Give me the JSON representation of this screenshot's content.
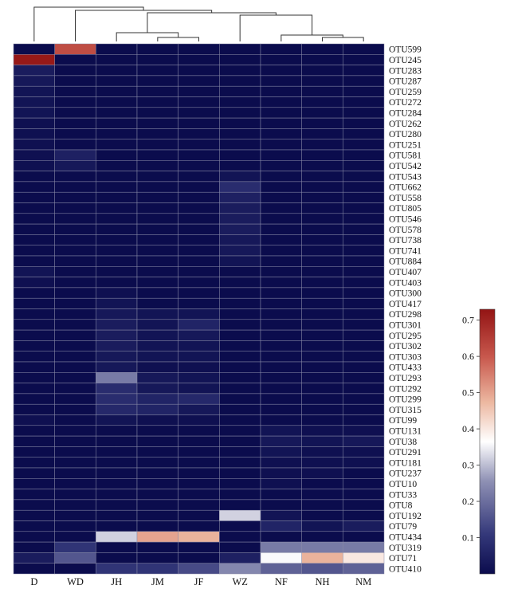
{
  "chart_data": {
    "type": "heatmap",
    "columns": [
      "D",
      "WD",
      "JH",
      "JM",
      "JF",
      "WZ",
      "NF",
      "NH",
      "NM"
    ],
    "rows": [
      "OTU599",
      "OTU245",
      "OTU283",
      "OTU287",
      "OTU259",
      "OTU272",
      "OTU284",
      "OTU262",
      "OTU280",
      "OTU251",
      "OTU581",
      "OTU542",
      "OTU543",
      "OTU662",
      "OTU558",
      "OTU805",
      "OTU546",
      "OTU578",
      "OTU738",
      "OTU741",
      "OTU884",
      "OTU407",
      "OTU403",
      "OTU300",
      "OTU417",
      "OTU298",
      "OTU301",
      "OTU295",
      "OTU302",
      "OTU303",
      "OTU433",
      "OTU293",
      "OTU292",
      "OTU299",
      "OTU315",
      "OTU99",
      "OTU131",
      "OTU38",
      "OTU291",
      "OTU181",
      "OTU237",
      "OTU10",
      "OTU33",
      "OTU8",
      "OTU192",
      "OTU79",
      "OTU434",
      "OTU319",
      "OTU71",
      "OTU410"
    ],
    "values": [
      [
        0.0,
        0.62,
        0.0,
        0.0,
        0.0,
        0.0,
        0.0,
        0.0,
        0.0
      ],
      [
        0.72,
        0.0,
        0.0,
        0.0,
        0.0,
        0.0,
        0.0,
        0.0,
        0.0
      ],
      [
        0.04,
        0.0,
        0.0,
        0.0,
        0.0,
        0.0,
        0.0,
        0.0,
        0.0
      ],
      [
        0.03,
        0.0,
        0.0,
        0.0,
        0.0,
        0.0,
        0.0,
        0.0,
        0.0
      ],
      [
        0.02,
        0.0,
        0.0,
        0.0,
        0.0,
        0.0,
        0.0,
        0.0,
        0.0
      ],
      [
        0.02,
        0.0,
        0.0,
        0.0,
        0.0,
        0.0,
        0.0,
        0.0,
        0.0
      ],
      [
        0.02,
        0.0,
        0.0,
        0.0,
        0.0,
        0.0,
        0.0,
        0.0,
        0.0
      ],
      [
        0.01,
        0.0,
        0.0,
        0.0,
        0.0,
        0.0,
        0.0,
        0.0,
        0.0
      ],
      [
        0.01,
        0.0,
        0.0,
        0.0,
        0.0,
        0.0,
        0.0,
        0.0,
        0.0
      ],
      [
        0.01,
        0.0,
        0.0,
        0.0,
        0.0,
        0.0,
        0.0,
        0.0,
        0.0
      ],
      [
        0.01,
        0.05,
        0.0,
        0.0,
        0.0,
        0.0,
        0.0,
        0.0,
        0.0
      ],
      [
        0.01,
        0.03,
        0.0,
        0.0,
        0.0,
        0.0,
        0.0,
        0.0,
        0.0
      ],
      [
        0.0,
        0.0,
        0.0,
        0.0,
        0.0,
        0.02,
        0.0,
        0.0,
        0.0
      ],
      [
        0.0,
        0.0,
        0.0,
        0.0,
        0.0,
        0.08,
        0.0,
        0.0,
        0.0
      ],
      [
        0.0,
        0.0,
        0.0,
        0.0,
        0.0,
        0.05,
        0.0,
        0.0,
        0.0
      ],
      [
        0.0,
        0.0,
        0.0,
        0.0,
        0.0,
        0.04,
        0.0,
        0.0,
        0.0
      ],
      [
        0.0,
        0.0,
        0.0,
        0.0,
        0.0,
        0.04,
        0.0,
        0.0,
        0.0
      ],
      [
        0.0,
        0.0,
        0.0,
        0.0,
        0.0,
        0.04,
        0.0,
        0.0,
        0.0
      ],
      [
        0.0,
        0.0,
        0.0,
        0.0,
        0.0,
        0.03,
        0.0,
        0.0,
        0.0
      ],
      [
        0.0,
        0.0,
        0.0,
        0.0,
        0.0,
        0.03,
        0.0,
        0.0,
        0.0
      ],
      [
        0.0,
        0.0,
        0.0,
        0.0,
        0.0,
        0.02,
        0.0,
        0.0,
        0.0
      ],
      [
        0.02,
        0.0,
        0.0,
        0.0,
        0.0,
        0.0,
        0.0,
        0.0,
        0.0
      ],
      [
        0.01,
        0.0,
        0.0,
        0.0,
        0.0,
        0.0,
        0.0,
        0.0,
        0.0
      ],
      [
        0.0,
        0.0,
        0.01,
        0.0,
        0.0,
        0.0,
        0.0,
        0.0,
        0.0
      ],
      [
        0.0,
        0.0,
        0.02,
        0.0,
        0.0,
        0.0,
        0.0,
        0.0,
        0.0
      ],
      [
        0.0,
        0.0,
        0.03,
        0.02,
        0.02,
        0.0,
        0.0,
        0.0,
        0.0
      ],
      [
        0.0,
        0.0,
        0.04,
        0.02,
        0.06,
        0.0,
        0.0,
        0.0,
        0.0
      ],
      [
        0.0,
        0.0,
        0.04,
        0.02,
        0.03,
        0.0,
        0.0,
        0.0,
        0.0
      ],
      [
        0.0,
        0.0,
        0.04,
        0.02,
        0.02,
        0.0,
        0.0,
        0.0,
        0.0
      ],
      [
        0.0,
        0.0,
        0.03,
        0.02,
        0.02,
        0.0,
        0.0,
        0.0,
        0.0
      ],
      [
        0.0,
        0.0,
        0.03,
        0.01,
        0.01,
        0.0,
        0.0,
        0.0,
        0.0
      ],
      [
        0.0,
        0.0,
        0.22,
        0.03,
        0.02,
        0.0,
        0.0,
        0.0,
        0.0
      ],
      [
        0.0,
        0.0,
        0.08,
        0.03,
        0.02,
        0.0,
        0.0,
        0.0,
        0.0
      ],
      [
        0.0,
        0.0,
        0.08,
        0.06,
        0.07,
        0.0,
        0.0,
        0.0,
        0.0
      ],
      [
        0.0,
        0.0,
        0.07,
        0.06,
        0.03,
        0.0,
        0.0,
        0.0,
        0.0
      ],
      [
        0.01,
        0.0,
        0.02,
        0.01,
        0.01,
        0.0,
        0.0,
        0.0,
        0.0
      ],
      [
        0.0,
        0.0,
        0.0,
        0.0,
        0.0,
        0.0,
        0.02,
        0.01,
        0.01
      ],
      [
        0.0,
        0.0,
        0.0,
        0.0,
        0.0,
        0.0,
        0.03,
        0.02,
        0.03
      ],
      [
        0.0,
        0.0,
        0.0,
        0.0,
        0.0,
        0.0,
        0.02,
        0.01,
        0.01
      ],
      [
        0.0,
        0.0,
        0.0,
        0.0,
        0.0,
        0.0,
        0.01,
        0.01,
        0.01
      ],
      [
        0.0,
        0.0,
        0.0,
        0.0,
        0.0,
        0.0,
        0.01,
        0.01,
        0.0
      ],
      [
        0.0,
        0.0,
        0.0,
        0.0,
        0.0,
        0.0,
        0.01,
        0.0,
        0.0
      ],
      [
        0.0,
        0.0,
        0.0,
        0.0,
        0.0,
        0.0,
        0.0,
        0.0,
        0.0
      ],
      [
        0.0,
        0.0,
        0.0,
        0.0,
        0.0,
        0.0,
        0.0,
        0.0,
        0.0
      ],
      [
        0.0,
        0.0,
        0.0,
        0.0,
        0.0,
        0.32,
        0.02,
        0.0,
        0.0
      ],
      [
        0.0,
        0.0,
        0.0,
        0.0,
        0.0,
        0.0,
        0.06,
        0.02,
        0.04
      ],
      [
        0.0,
        0.0,
        0.32,
        0.5,
        0.48,
        0.0,
        0.0,
        0.0,
        0.0
      ],
      [
        0.0,
        0.1,
        0.0,
        0.0,
        0.0,
        0.0,
        0.22,
        0.22,
        0.22
      ],
      [
        0.04,
        0.16,
        0.0,
        0.0,
        0.0,
        0.05,
        0.36,
        0.48,
        0.4
      ],
      [
        0.0,
        0.0,
        0.1,
        0.1,
        0.14,
        0.24,
        0.18,
        0.16,
        0.18
      ]
    ],
    "colorbar": {
      "range": [
        0,
        0.73
      ],
      "ticks": [
        "0.1",
        "0.2",
        "0.3",
        "0.4",
        "0.5",
        "0.6",
        "0.7"
      ],
      "colors": [
        "#0b0c4d",
        "#34387a",
        "#8e90b4",
        "#ffffff",
        "#ecb7a0",
        "#c8584d",
        "#931414"
      ]
    },
    "dendrogram_order": [
      "D",
      "WD",
      "JH",
      "JM",
      "JF",
      "WZ",
      "NF",
      "NH",
      "NM"
    ]
  }
}
